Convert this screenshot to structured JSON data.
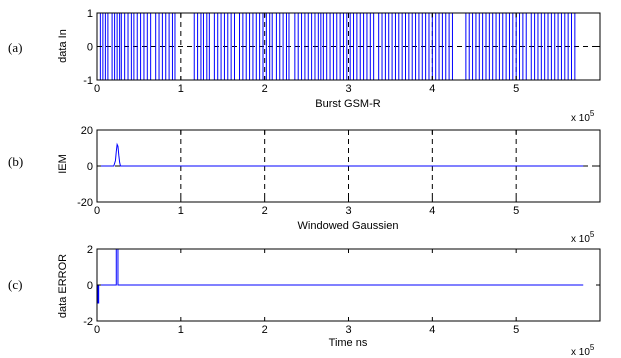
{
  "chart_data": [
    {
      "type": "line",
      "panel_tag": "(a)",
      "xlabel": "Burst GSM-R",
      "ylabel": "data In",
      "x_multiplier": "x 10",
      "x_multiplier_exp": "5",
      "xlim": [
        0,
        6
      ],
      "ylim": [
        -1,
        1
      ],
      "xticks": [
        0,
        1,
        2,
        3,
        4,
        5
      ],
      "yticks": [
        -1,
        0,
        1
      ],
      "xtick_labels": [
        "0",
        "1",
        "2",
        "3",
        "4",
        "5"
      ],
      "ytick_labels": [
        "-1",
        "0",
        "1"
      ],
      "grid": "dashed",
      "line_color": "#0000ff",
      "series": [
        {
          "kind": "square-wave",
          "levels": [
            -1,
            1
          ],
          "x_end": 5.7,
          "transitions": [
            0.04,
            0.07,
            0.1,
            0.13,
            0.18,
            0.21,
            0.24,
            0.27,
            0.29,
            0.33,
            0.37,
            0.41,
            0.44,
            0.48,
            0.52,
            0.56,
            0.6,
            0.64,
            0.7,
            0.74,
            0.78,
            0.82,
            0.86,
            0.9,
            0.93,
            1.16,
            1.2,
            1.24,
            1.27,
            1.31,
            1.34,
            1.4,
            1.44,
            1.48,
            1.52,
            1.56,
            1.6,
            1.64,
            1.7,
            1.74,
            1.78,
            1.82,
            1.86,
            1.9,
            1.94,
            1.98,
            2.02,
            2.06,
            2.09,
            2.14,
            2.18,
            2.22,
            2.26,
            2.29,
            2.36,
            2.4,
            2.44,
            2.48,
            2.52,
            2.56,
            2.6,
            2.64,
            2.67,
            2.7,
            2.74,
            2.78,
            2.82,
            2.86,
            2.9,
            2.94,
            2.98,
            3.02,
            3.06,
            3.1,
            3.14,
            3.18,
            3.22,
            3.26,
            3.3,
            3.36,
            3.4,
            3.44,
            3.48,
            3.52,
            3.56,
            3.6,
            3.64,
            3.68,
            3.72,
            3.76,
            3.8,
            3.84,
            3.88,
            3.92,
            3.96,
            4.0,
            4.04,
            4.08,
            4.12,
            4.16,
            4.2,
            4.24,
            4.4,
            4.44,
            4.48,
            4.52,
            4.56,
            4.6,
            4.64,
            4.68,
            4.72,
            4.76,
            4.8,
            4.84,
            4.88,
            4.92,
            4.96,
            5.0,
            5.04,
            5.08,
            5.12,
            5.18,
            5.22,
            5.26,
            5.3,
            5.34,
            5.38,
            5.42,
            5.46,
            5.5,
            5.54,
            5.58,
            5.62,
            5.66,
            5.7
          ]
        }
      ]
    },
    {
      "type": "line",
      "panel_tag": "(b)",
      "xlabel": "Windowed Gaussien",
      "ylabel": "IEM",
      "x_multiplier": "x 10",
      "x_multiplier_exp": "5",
      "xlim": [
        0,
        6
      ],
      "ylim": [
        -20,
        20
      ],
      "xticks": [
        0,
        1,
        2,
        3,
        4,
        5
      ],
      "yticks": [
        -20,
        0,
        20
      ],
      "xtick_labels": [
        "0",
        "1",
        "2",
        "3",
        "4",
        "5"
      ],
      "ytick_labels": [
        "-20",
        "0",
        "20"
      ],
      "grid": "dashed",
      "line_color": "#0000ff",
      "series": [
        {
          "kind": "line",
          "x": [
            0,
            0.2,
            0.22,
            0.23,
            0.24,
            0.25,
            0.26,
            0.27,
            0.28,
            0.3,
            5.8
          ],
          "y": [
            0,
            0,
            3,
            8,
            12,
            11,
            6,
            2,
            0,
            0,
            0
          ]
        }
      ]
    },
    {
      "type": "line",
      "panel_tag": "(c)",
      "xlabel": "Time ns",
      "ylabel": "data ERROR",
      "x_multiplier": "x 10",
      "x_multiplier_exp": "5",
      "xlim": [
        0,
        6
      ],
      "ylim": [
        -2,
        2
      ],
      "xticks": [
        0,
        1,
        2,
        3,
        4,
        5
      ],
      "yticks": [
        -2,
        0,
        2
      ],
      "xtick_labels": [
        "0",
        "1",
        "2",
        "3",
        "4",
        "5"
      ],
      "ytick_labels": [
        "-2",
        "0",
        "2"
      ],
      "grid": "none",
      "line_color": "#0000ff",
      "series": [
        {
          "kind": "line",
          "x": [
            0,
            0.01,
            0.01,
            0.02,
            0.02,
            0.23,
            0.23,
            0.25,
            0.25,
            5.8
          ],
          "y": [
            0,
            0,
            -1,
            -1,
            0,
            0,
            2,
            2,
            0,
            0
          ]
        }
      ]
    }
  ]
}
